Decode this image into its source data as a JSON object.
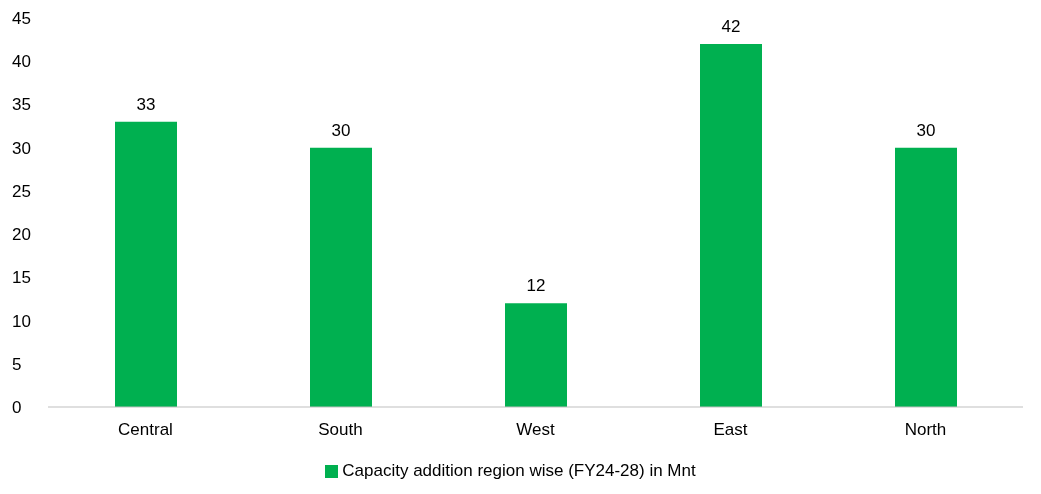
{
  "chart_data": {
    "type": "bar",
    "categories": [
      "Central",
      "South",
      "West",
      "East",
      "North"
    ],
    "series": [
      {
        "name": "Capacity addition region wise (FY24-28) in Mnt",
        "color": "#00b050",
        "values": [
          33,
          30,
          12,
          42,
          30
        ]
      }
    ],
    "ylim": [
      0,
      45
    ],
    "yticks": [
      0,
      5,
      10,
      15,
      20,
      25,
      30,
      35,
      40,
      45
    ],
    "data_labels": true,
    "legend": "bottom",
    "grid": false
  }
}
